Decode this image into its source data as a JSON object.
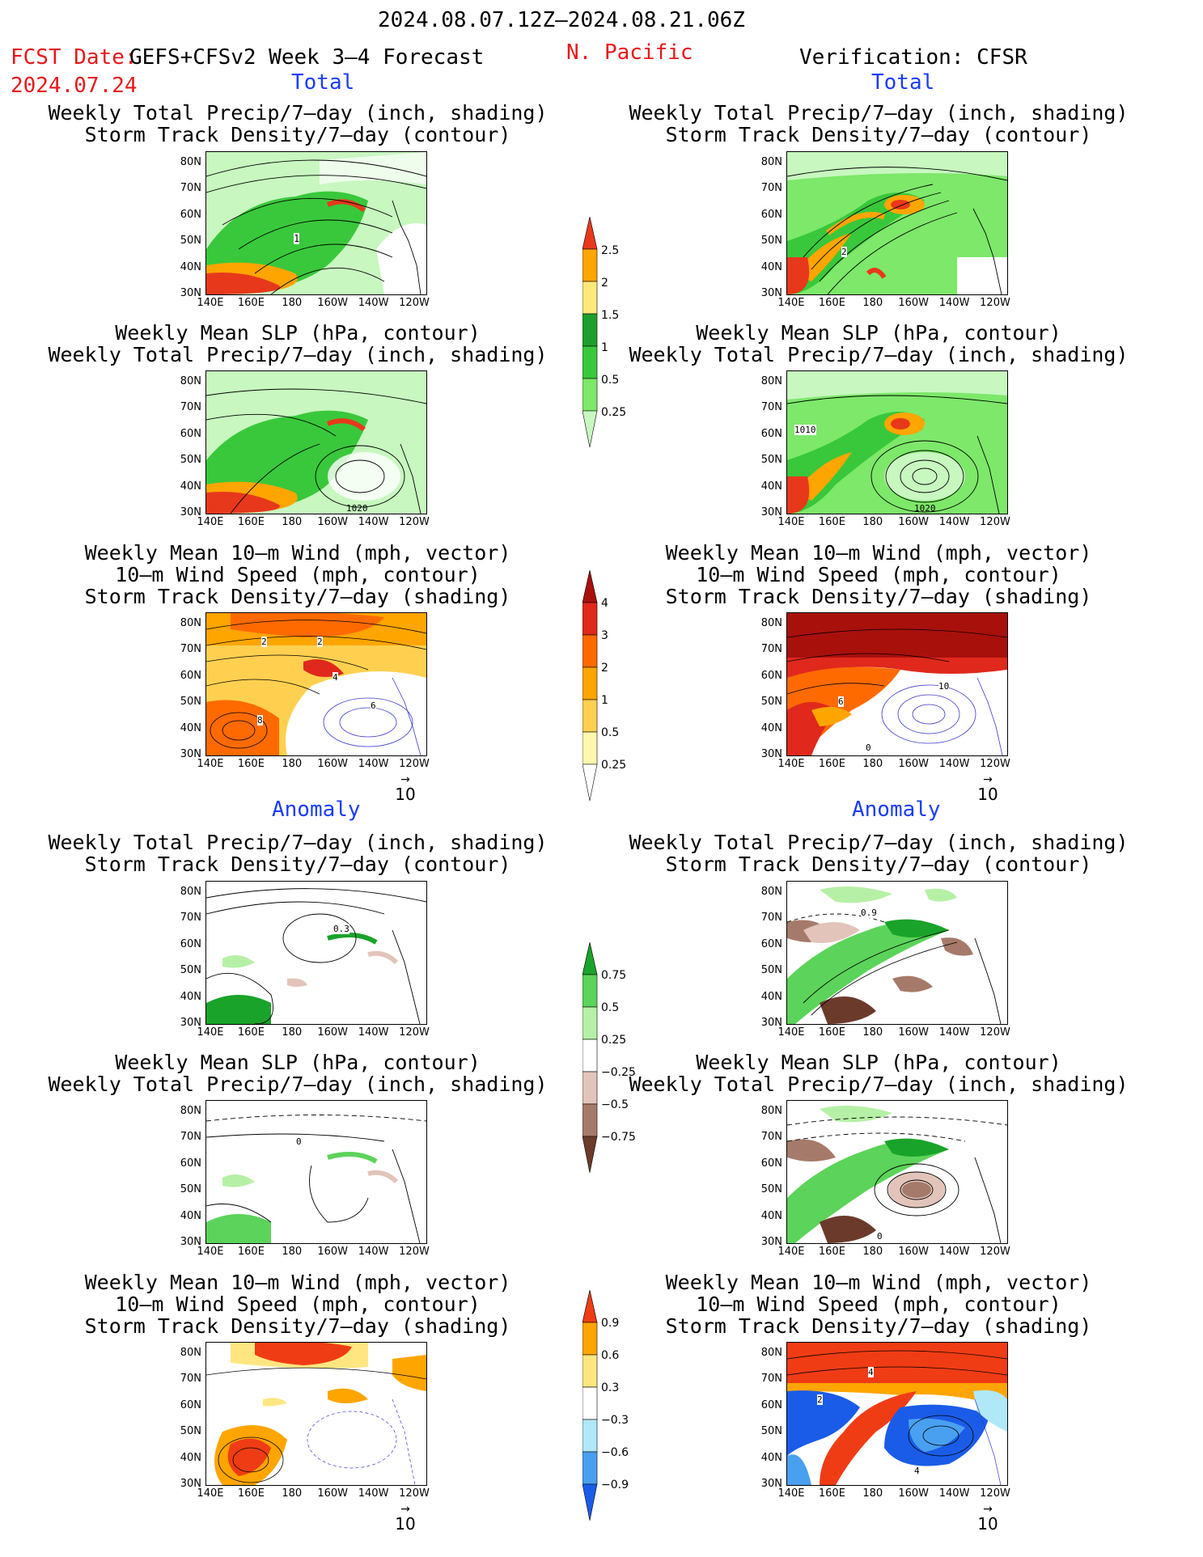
{
  "header": {
    "period": "2024.08.07.12Z–2024.08.21.06Z",
    "fcst_label": "FCST Date:",
    "model": "GEFS+CFSv2 Week 3–4 Forecast",
    "fcst_date": "2024.07.24",
    "region": "N. Pacific",
    "verification": "Verification: CFSR"
  },
  "sections": {
    "total": "Total",
    "anomaly": "Anomaly"
  },
  "axes": {
    "lat": [
      "80N",
      "70N",
      "60N",
      "50N",
      "40N",
      "30N"
    ],
    "lon": [
      "140E",
      "160E",
      "180",
      "160W",
      "140W",
      "120W"
    ]
  },
  "reference_vector": "10",
  "panel_titles": {
    "precip_track": [
      "Weekly Total Precip/7–day (inch, shading)",
      "Storm Track Density/7–day (contour)"
    ],
    "slp_precip": [
      "Weekly Mean SLP (hPa, contour)",
      "Weekly Total Precip/7–day (inch, shading)"
    ],
    "wind_track": [
      "Weekly Mean 10–m Wind (mph, vector)",
      "10–m Wind Speed (mph, contour)",
      "Storm Track Density/7–day (shading)"
    ]
  },
  "contour_labels": {
    "l_p1": "1",
    "r_p1": "2",
    "l_p2": "1020",
    "r_p2a": "1010",
    "r_p2b": "1020",
    "l_p3a": "2",
    "l_p3b": "2",
    "l_p3c": "4",
    "l_p3d": "6",
    "l_p3e": "8",
    "r_p3a": "6",
    "r_p3b": "10",
    "r_p3c": "0",
    "l_a1": "0.3",
    "r_a1": "0.9",
    "l_a2": "0",
    "r_a2": "0",
    "r_a3a": "4",
    "r_a3b": "2",
    "r_a3c": "4"
  },
  "colorbars": {
    "precip_total": [
      "2.5",
      "2",
      "1.5",
      "1",
      "0.5",
      "0.25"
    ],
    "track_total": [
      "4",
      "3",
      "2",
      "1",
      "0.5",
      "0.25"
    ],
    "precip_anom": [
      "0.75",
      "0.5",
      "0.25",
      "−0.25",
      "−0.5",
      "−0.75"
    ],
    "track_anom": [
      "0.9",
      "0.6",
      "0.3",
      "−0.3",
      "−0.6",
      "−0.9"
    ]
  },
  "colors": {
    "title_red": "#e8181c",
    "section_blue": "#1a3cff",
    "precip": [
      "#c8f7c0",
      "#7de86a",
      "#39c83b",
      "#1e9e2a",
      "#ffe97a",
      "#ffa500",
      "#e8381c"
    ],
    "track": [
      "#fff6b0",
      "#ffd050",
      "#ffa500",
      "#ff6a00",
      "#e0281c",
      "#a8100c"
    ],
    "precip_anom": [
      "#6b3a2a",
      "#a67a6a",
      "#e2c4ba",
      "#ffffff",
      "#b6f0a6",
      "#5cd35a",
      "#1aa32a"
    ],
    "track_anom": [
      "#1a5ce8",
      "#4aa0f0",
      "#b0e8f8",
      "#ffffff",
      "#ffe680",
      "#ffa500",
      "#f03c14"
    ]
  }
}
